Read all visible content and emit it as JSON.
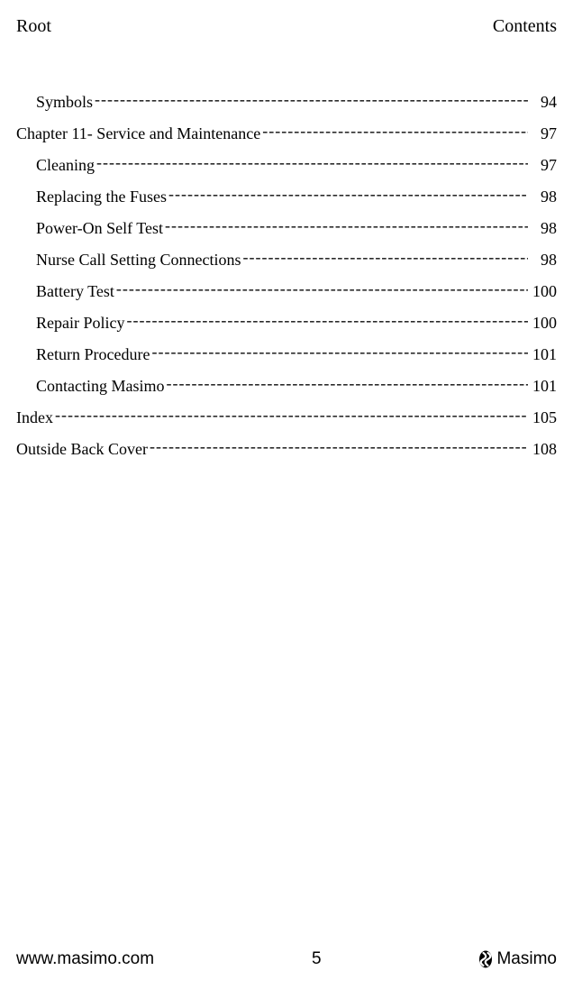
{
  "header": {
    "left": "Root",
    "right": "Contents"
  },
  "toc": {
    "entries": [
      {
        "label": "Symbols",
        "page": "94",
        "level": 1
      },
      {
        "label": "Chapter 11- Service and Maintenance",
        "page": "97",
        "level": 0
      },
      {
        "label": "Cleaning",
        "page": "97",
        "level": 1
      },
      {
        "label": "Replacing the Fuses",
        "page": "98",
        "level": 1
      },
      {
        "label": "Power-On Self Test",
        "page": "98",
        "level": 1
      },
      {
        "label": "Nurse Call Setting Connections",
        "page": "98",
        "level": 1
      },
      {
        "label": "Battery Test",
        "page": "100",
        "level": 1
      },
      {
        "label": "Repair Policy",
        "page": "100",
        "level": 1
      },
      {
        "label": "Return Procedure",
        "page": "101",
        "level": 1
      },
      {
        "label": "Contacting Masimo",
        "page": "101",
        "level": 1
      },
      {
        "label": "Index",
        "page": "105",
        "level": 0
      },
      {
        "label": "Outside Back Cover",
        "page": "108",
        "level": 0
      }
    ]
  },
  "footer": {
    "url": "www.masimo.com",
    "page_number": "5",
    "brand": "Masimo"
  },
  "colors": {
    "background": "#ffffff",
    "text": "#000000"
  },
  "typography": {
    "body_font": "Times New Roman",
    "footer_font": "Arial",
    "header_fontsize": 20,
    "toc_fontsize": 18,
    "footer_fontsize": 19
  }
}
